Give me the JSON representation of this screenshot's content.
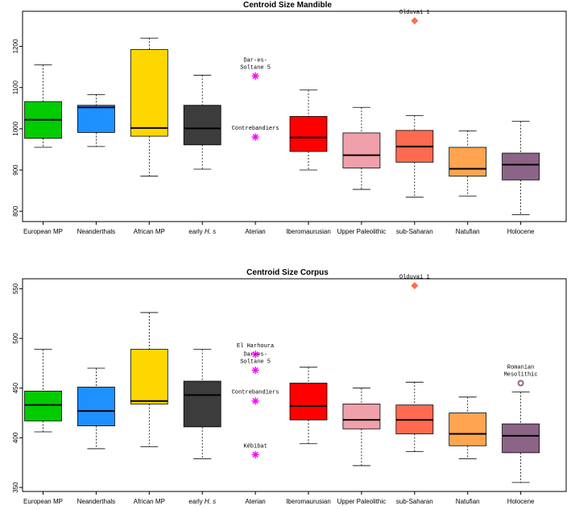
{
  "chart_data": [
    {
      "type": "box",
      "title": "Centroid Size Mandible",
      "xlabel": "",
      "ylabel": "",
      "ylim": [
        775,
        1285
      ],
      "yticks": [
        800,
        900,
        1000,
        1100,
        1200
      ],
      "categories": [
        "European MP",
        "Neanderthals",
        "African MP",
        "early H. s",
        "Aterian",
        "Iberomaurusian",
        "Upper Paleolithic",
        "sub-Saharan",
        "Natufian",
        "Holocene"
      ],
      "boxes": [
        {
          "category": "European MP",
          "min": 955,
          "q1": 977,
          "median": 1022,
          "q3": 1066,
          "max": 1155,
          "color": "#00cc00"
        },
        {
          "category": "Neanderthals",
          "min": 957,
          "q1": 991,
          "median": 1052,
          "q3": 1057,
          "max": 1083,
          "color": "#1e90ff"
        },
        {
          "category": "African MP",
          "min": 885,
          "q1": 982,
          "median": 1002,
          "q3": 1192,
          "max": 1220,
          "color": "#ffd700"
        },
        {
          "category": "early H. s",
          "min": 902,
          "q1": 961,
          "median": 1001,
          "q3": 1057,
          "max": 1130,
          "color": "#3c3c3c"
        },
        {
          "category": "Iberomaurusian",
          "min": 900,
          "q1": 945,
          "median": 979,
          "q3": 1030,
          "max": 1094,
          "color": "#ff0000"
        },
        {
          "category": "Upper Paleolithic",
          "min": 853,
          "q1": 905,
          "median": 936,
          "q3": 990,
          "max": 1052,
          "color": "#f0a0aa"
        },
        {
          "category": "sub-Saharan",
          "min": 834,
          "q1": 919,
          "median": 957,
          "q3": 996,
          "max": 1032,
          "color": "#ff6a50"
        },
        {
          "category": "Natufian",
          "min": 837,
          "q1": 885,
          "median": 903,
          "q3": 955,
          "max": 995,
          "color": "#ffa550"
        },
        {
          "category": "Holocene",
          "min": 792,
          "q1": 876,
          "median": 913,
          "q3": 941,
          "max": 1018,
          "color": "#8b6487"
        }
      ],
      "points": [
        {
          "label": "Dar-es-\nSoltane 5",
          "category": "Aterian",
          "value": 1128,
          "marker": "asterisk",
          "color": "#ff00ff"
        },
        {
          "label": "Contrebandiers",
          "category": "Aterian",
          "value": 980,
          "marker": "asterisk",
          "color": "#ff00ff"
        },
        {
          "label": "Olduvai 1",
          "category": "sub-Saharan",
          "value": 1262,
          "marker": "diamond",
          "color": "#fa6e50"
        }
      ]
    },
    {
      "type": "box",
      "title": "Centroid Size Corpus",
      "xlabel": "",
      "ylabel": "",
      "ylim": [
        346,
        560
      ],
      "yticks": [
        350,
        400,
        450,
        500,
        550
      ],
      "categories": [
        "European MP",
        "Neanderthals",
        "African MP",
        "early H. s",
        "Aterian",
        "Iberomaurusian",
        "Upper Paleolithic",
        "sub-Saharan",
        "Natufian",
        "Holocene"
      ],
      "boxes": [
        {
          "category": "European MP",
          "min": 406,
          "q1": 417,
          "median": 433,
          "q3": 447,
          "max": 489,
          "color": "#00cc00"
        },
        {
          "category": "Neanderthals",
          "min": 389,
          "q1": 412,
          "median": 427,
          "q3": 451,
          "max": 470,
          "color": "#1e90ff"
        },
        {
          "category": "African MP",
          "min": 391,
          "q1": 434,
          "median": 437,
          "q3": 489,
          "max": 526,
          "color": "#ffd700"
        },
        {
          "category": "early H. s",
          "min": 379,
          "q1": 411,
          "median": 443,
          "q3": 457,
          "max": 489,
          "color": "#3c3c3c"
        },
        {
          "category": "Iberomaurusian",
          "min": 394,
          "q1": 418,
          "median": 432,
          "q3": 455,
          "max": 471,
          "color": "#ff0000"
        },
        {
          "category": "Upper Paleolithic",
          "min": 372,
          "q1": 409,
          "median": 418,
          "q3": 434,
          "max": 450,
          "color": "#f0a0aa"
        },
        {
          "category": "sub-Saharan",
          "min": 386,
          "q1": 404,
          "median": 418,
          "q3": 433,
          "max": 456,
          "color": "#ff6a50"
        },
        {
          "category": "Natufian",
          "min": 379,
          "q1": 392,
          "median": 404,
          "q3": 425,
          "max": 441,
          "color": "#ffa550"
        },
        {
          "category": "Holocene",
          "min": 355,
          "q1": 385,
          "median": 402,
          "q3": 414,
          "max": 446,
          "color": "#8b6487"
        }
      ],
      "points": [
        {
          "label": "El Harhoura",
          "category": "Aterian",
          "value": 484,
          "marker": "asterisk",
          "color": "#ff00ff"
        },
        {
          "label": "Dar-es-\nSoltane 5",
          "category": "Aterian",
          "value": 468,
          "marker": "asterisk",
          "color": "#ff00ff"
        },
        {
          "label": "Contrebandiers",
          "category": "Aterian",
          "value": 437,
          "marker": "asterisk",
          "color": "#ff00ff"
        },
        {
          "label": "Kébibat",
          "category": "Aterian",
          "value": 383,
          "marker": "asterisk",
          "color": "#ff00ff"
        },
        {
          "label": "Olduvai 1",
          "category": "sub-Saharan",
          "value": 553,
          "marker": "diamond",
          "color": "#fa6e50"
        },
        {
          "label": "Romanian\nMesolithic",
          "category": "Holocene",
          "value": 455,
          "marker": "circle",
          "color": "#8b6487"
        }
      ]
    }
  ]
}
